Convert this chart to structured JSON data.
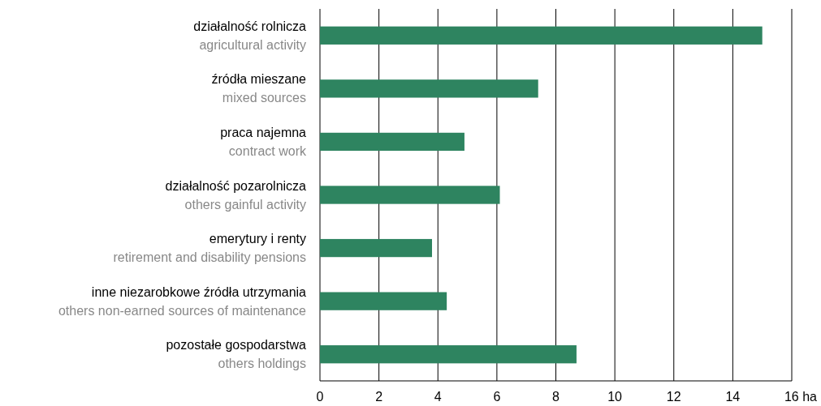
{
  "chart_data": {
    "type": "bar",
    "orientation": "horizontal",
    "categories": [
      "działalność rolnicza\nagricultural activity",
      "źródła mieszane\nmixed sources",
      "praca najemna\ncontract work",
      "działalność pozarolnicza\nothers gainful activity",
      "emerytury i renty\nretirement and disability pensions",
      "inne niezarobkowe źródła utrzymania\nothers non-earned sources of maintenance",
      "pozostałe gospodarstwa\nothers holdings"
    ],
    "values": [
      15.0,
      7.4,
      4.9,
      6.1,
      3.8,
      4.3,
      8.7
    ],
    "color": "#2e8460",
    "xlim": [
      0,
      16
    ],
    "xticks": [
      0,
      2,
      4,
      6,
      8,
      10,
      12,
      {
        "value": 16,
        "label": "16 ha"
      },
      14
    ],
    "grid": "x"
  }
}
